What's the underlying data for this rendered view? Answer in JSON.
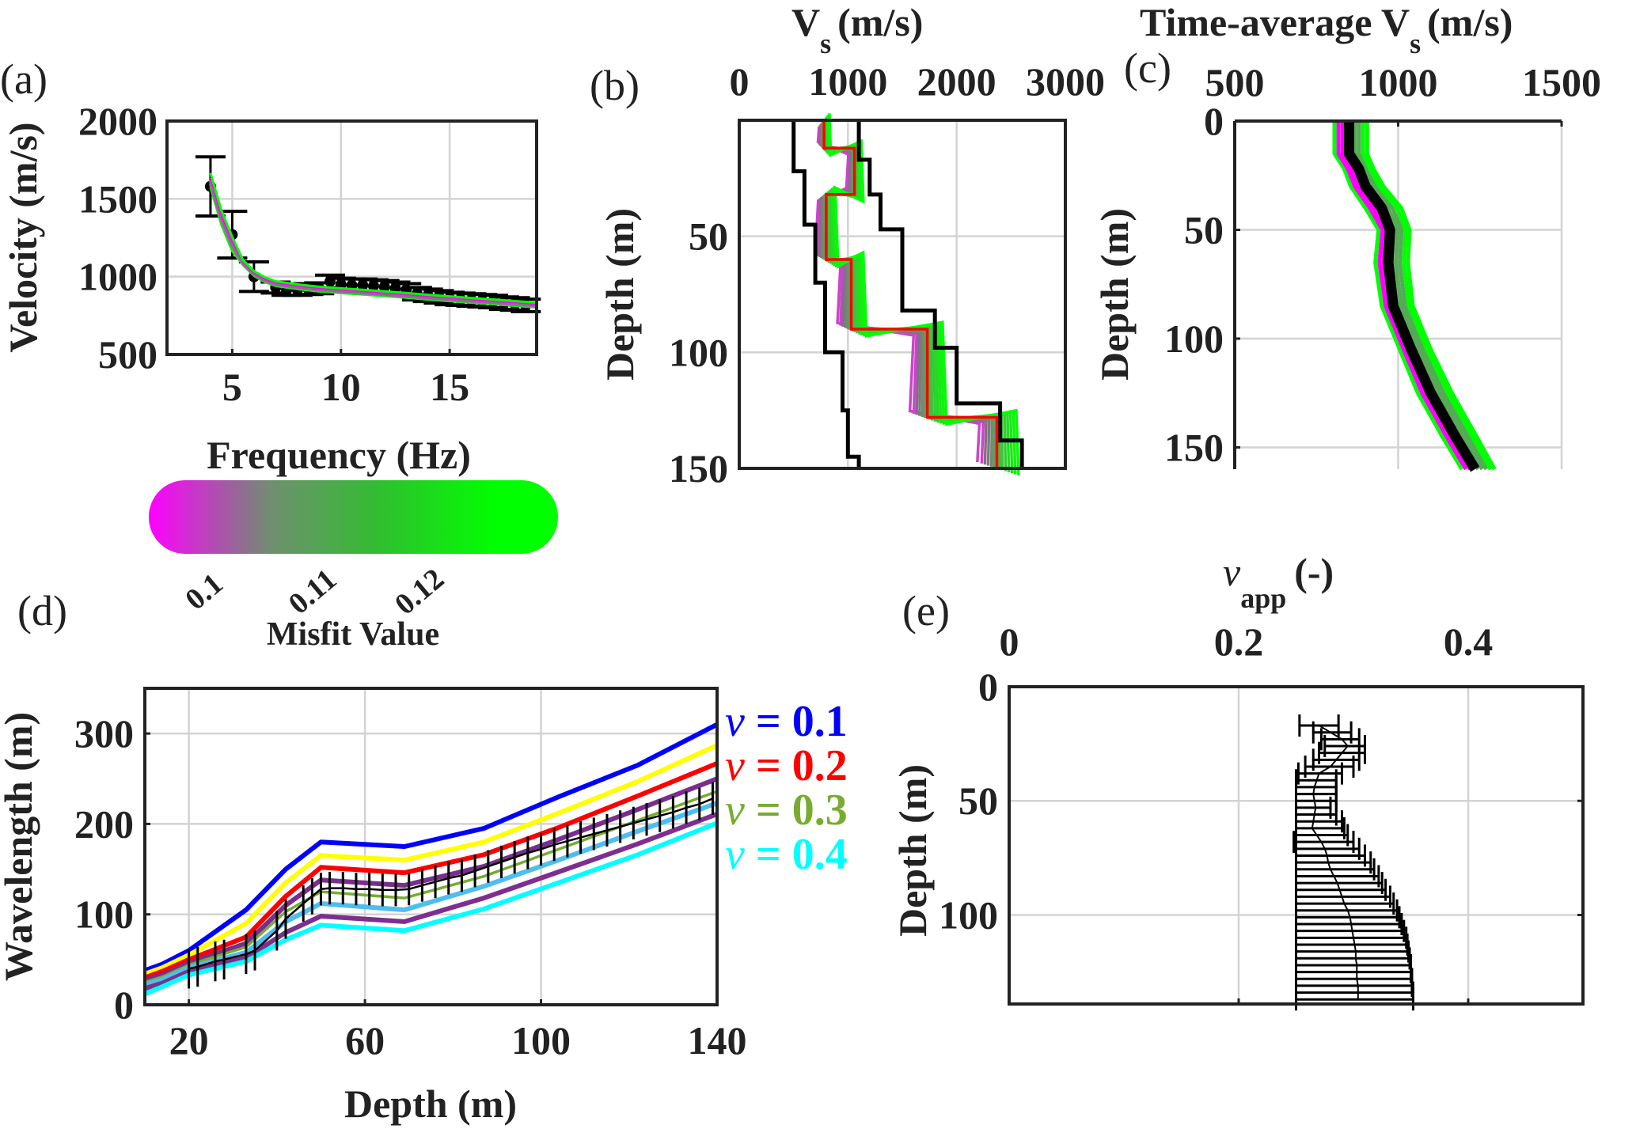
{
  "chart_data": [
    {
      "id": "a",
      "panel_label": "(a)",
      "type": "line",
      "xlabel": "Frequency (Hz)",
      "ylabel": "Velocity (m/s)",
      "xlim": [
        2,
        19
      ],
      "ylim": [
        500,
        2000
      ],
      "xticks": [
        5,
        10,
        15
      ],
      "yticks": [
        500,
        1000,
        1500,
        2000
      ],
      "grid": true,
      "observed": {
        "name": "Experimental dispersion data",
        "x": [
          4,
          5,
          6,
          7,
          7.5,
          8,
          8.5,
          9,
          9.5,
          10,
          10.5,
          11,
          11.5,
          12,
          12.5,
          13,
          13.5,
          14,
          14.5,
          15,
          15.5,
          16,
          16.5,
          17,
          17.5,
          18,
          18.5
        ],
        "y": [
          1580,
          1270,
          1000,
          930,
          915,
          915,
          920,
          925,
          970,
          950,
          945,
          945,
          940,
          935,
          925,
          915,
          890,
          880,
          870,
          860,
          855,
          850,
          845,
          840,
          830,
          825,
          815
        ],
        "err": [
          190,
          150,
          95,
          35,
          35,
          35,
          35,
          35,
          40,
          40,
          40,
          40,
          40,
          40,
          40,
          40,
          40,
          40,
          40,
          40,
          40,
          40,
          40,
          40,
          40,
          40,
          40
        ]
      },
      "fit_band": {
        "name": "Theoretical dispersion curves (colored by misfit)",
        "x": [
          4,
          4.5,
          5,
          5.5,
          6,
          6.5,
          7,
          8,
          9,
          10,
          11,
          12,
          13,
          14,
          15,
          16,
          17,
          18,
          19
        ],
        "y": [
          1620,
          1380,
          1210,
          1090,
          1020,
          980,
          955,
          935,
          920,
          910,
          900,
          890,
          880,
          868,
          858,
          848,
          838,
          828,
          818
        ]
      }
    },
    {
      "id": "b",
      "panel_label": "(b)",
      "type": "line",
      "xlabel_main": "V",
      "xlabel_sub": "s",
      "xlabel_unit": "(m/s)",
      "ylabel": "Depth (m)",
      "xlim": [
        0,
        3000
      ],
      "ylim": [
        0,
        150
      ],
      "xticks": [
        0,
        1000,
        2000,
        3000
      ],
      "yticks": [
        50,
        100,
        150
      ],
      "grid": true,
      "best_profile": {
        "name": "Best Vs profile",
        "color": "#ff0000",
        "steps": [
          [
            0,
            780
          ],
          [
            12,
            780
          ],
          [
            12,
            1060
          ],
          [
            32,
            1060
          ],
          [
            32,
            800
          ],
          [
            60,
            800
          ],
          [
            60,
            1030
          ],
          [
            90,
            1030
          ],
          [
            90,
            1730
          ],
          [
            128,
            1730
          ],
          [
            128,
            2370
          ],
          [
            150,
            2370
          ]
        ]
      },
      "lower_bound": {
        "name": "Lower search bound",
        "color": "#000000",
        "steps": [
          [
            0,
            500
          ],
          [
            22,
            500
          ],
          [
            22,
            600
          ],
          [
            45,
            600
          ],
          [
            45,
            700
          ],
          [
            70,
            700
          ],
          [
            70,
            790
          ],
          [
            100,
            790
          ],
          [
            100,
            950
          ],
          [
            125,
            950
          ],
          [
            125,
            1000
          ],
          [
            145,
            1000
          ],
          [
            145,
            1100
          ],
          [
            150,
            1100
          ]
        ]
      },
      "upper_bound": {
        "name": "Upper search bound",
        "color": "#000000",
        "steps": [
          [
            0,
            1100
          ],
          [
            17,
            1100
          ],
          [
            17,
            1200
          ],
          [
            32,
            1200
          ],
          [
            32,
            1300
          ],
          [
            47,
            1300
          ],
          [
            47,
            1500
          ],
          [
            82,
            1500
          ],
          [
            82,
            1800
          ],
          [
            98,
            1800
          ],
          [
            98,
            2000
          ],
          [
            122,
            2000
          ],
          [
            122,
            2400
          ],
          [
            138,
            2400
          ],
          [
            138,
            2600
          ],
          [
            150,
            2600
          ]
        ]
      }
    },
    {
      "id": "c",
      "panel_label": "(c)",
      "type": "line",
      "xlabel_main": "Time-average V",
      "xlabel_sub": "s",
      "xlabel_unit": "(m/s)",
      "ylabel": "Depth (m)",
      "xlim": [
        500,
        1500
      ],
      "ylim": [
        0,
        160
      ],
      "xticks": [
        500,
        1000,
        1500
      ],
      "yticks": [
        0,
        50,
        100,
        150
      ],
      "grid": true,
      "best_profile": {
        "name": "Time-averaged Vs (best)",
        "depth": [
          0,
          15,
          22,
          30,
          40,
          50,
          65,
          85,
          105,
          125,
          145,
          160
        ],
        "vs": [
          850,
          850,
          880,
          900,
          950,
          975,
          970,
          985,
          1040,
          1100,
          1175,
          1235
        ]
      },
      "band_min": [
        805,
        805,
        835,
        855,
        900,
        940,
        930,
        950,
        1005,
        1060,
        1135,
        1195
      ],
      "band_max": [
        905,
        905,
        925,
        955,
        1010,
        1035,
        1030,
        1045,
        1100,
        1165,
        1240,
        1295
      ]
    },
    {
      "id": "d",
      "panel_label": "(d)",
      "type": "line",
      "xlabel": "Depth (m)",
      "ylabel": "Wavelength (m)",
      "xlim": [
        10,
        140
      ],
      "ylim": [
        0,
        350
      ],
      "xticks": [
        20,
        60,
        100,
        140
      ],
      "yticks": [
        0,
        100,
        200,
        300
      ],
      "grid": true,
      "x": [
        10,
        14,
        20,
        33,
        42,
        50,
        69,
        87,
        104,
        122,
        140
      ],
      "series": [
        {
          "name": "nu = 0.1",
          "color": "#0000ff",
          "values": [
            38,
            45,
            60,
            105,
            150,
            180,
            175,
            195,
            230,
            265,
            310
          ],
          "label": true
        },
        {
          "name": "nu = 0.15",
          "color": "#ffff00",
          "values": [
            34,
            41,
            55,
            90,
            135,
            165,
            160,
            180,
            212,
            247,
            287
          ],
          "label": false
        },
        {
          "name": "nu = 0.2",
          "color": "#ff0000",
          "values": [
            30,
            37,
            50,
            75,
            120,
            152,
            146,
            166,
            196,
            231,
            267
          ],
          "label": true
        },
        {
          "name": "nu = 0.25",
          "color": "#7b2d8e",
          "values": [
            27,
            33,
            46,
            68,
            110,
            138,
            132,
            153,
            183,
            216,
            250
          ],
          "label": false
        },
        {
          "name": "nu = 0.3",
          "color": "#77ac30",
          "values": [
            25,
            31,
            44,
            64,
            103,
            125,
            118,
            142,
            172,
            204,
            236
          ],
          "label": true
        },
        {
          "name": "nu = 0.35",
          "color": "#4dbeee",
          "values": [
            22,
            28,
            41,
            58,
            92,
            112,
            105,
            131,
            160,
            192,
            223
          ],
          "label": false
        },
        {
          "name": "nu = 0.375",
          "color": "#7e2f8e",
          "values": [
            18,
            24,
            37,
            52,
            80,
            98,
            92,
            118,
            147,
            178,
            211
          ],
          "label": false
        },
        {
          "name": "nu = 0.4",
          "color": "#00ffff",
          "values": [
            12,
            20,
            33,
            48,
            72,
            88,
            82,
            106,
            135,
            166,
            201
          ],
          "label": true
        }
      ],
      "legend": [
        {
          "symbol": "ν",
          "eq": " = ",
          "value": "0.1",
          "color": "#0000ff"
        },
        {
          "symbol": "ν",
          "eq": " = ",
          "value": "0.2",
          "color": "#ff0000"
        },
        {
          "symbol": "ν",
          "eq": " = ",
          "value": "0.3",
          "color": "#77ac30"
        },
        {
          "symbol": "ν",
          "eq": " = ",
          "value": "0.4",
          "color": "#00ffff"
        }
      ],
      "legend_placement": "right-outside",
      "measured": {
        "name": "Measured wavelength vs depth (with error bars)",
        "x": [
          20,
          22,
          26,
          28,
          33,
          35,
          40,
          42,
          46,
          48,
          50,
          52,
          55,
          58,
          61,
          64,
          67,
          70,
          73,
          76,
          79,
          82,
          85,
          88,
          91,
          94,
          97,
          100,
          103,
          106,
          109,
          112,
          115,
          118,
          121,
          124,
          127,
          130,
          133,
          136,
          139
        ],
        "y": [
          40,
          42,
          48,
          50,
          56,
          60,
          82,
          95,
          112,
          120,
          128,
          129,
          129,
          128,
          128,
          127,
          127,
          128,
          132,
          136,
          140,
          143,
          148,
          153,
          158,
          163,
          168,
          172,
          177,
          181,
          185,
          189,
          193,
          197,
          201,
          205,
          209,
          213,
          218,
          222,
          228
        ],
        "err": [
          22,
          22,
          22,
          22,
          22,
          22,
          22,
          22,
          20,
          20,
          18,
          18,
          18,
          18,
          18,
          18,
          18,
          18,
          18,
          18,
          18,
          18,
          18,
          18,
          18,
          18,
          18,
          18,
          18,
          18,
          18,
          18,
          18,
          18,
          18,
          18,
          18,
          18,
          18,
          18,
          18
        ]
      }
    },
    {
      "id": "e",
      "panel_label": "(e)",
      "type": "scatter",
      "xlabel_main": "ν",
      "xlabel_sub": "app",
      "xlabel_unit": "(-)",
      "ylabel": "Depth (m)",
      "xlim": [
        0,
        0.5
      ],
      "ylim": [
        0,
        139
      ],
      "xticks": [
        0,
        0.2,
        0.4
      ],
      "yticks": [
        0,
        50,
        100
      ],
      "grid": true,
      "depth": [
        17,
        20,
        23,
        26,
        29,
        32,
        35,
        38,
        41,
        44,
        47,
        50,
        53,
        56,
        59,
        62,
        65,
        68,
        71,
        74,
        77,
        80,
        83,
        86,
        89,
        92,
        95,
        98,
        101,
        104,
        107,
        110,
        113,
        116,
        119,
        122,
        125,
        128,
        131,
        134,
        137
      ],
      "nu_mean": [
        0.27,
        0.28,
        0.29,
        0.295,
        0.29,
        0.285,
        0.28,
        0.27,
        0.268,
        0.266,
        0.265,
        0.266,
        0.267,
        0.266,
        0.265,
        0.264,
        0.268,
        0.272,
        0.275,
        0.277,
        0.278,
        0.28,
        0.283,
        0.286,
        0.288,
        0.29,
        0.292,
        0.295,
        0.297,
        0.298,
        0.299,
        0.3,
        0.301,
        0.302,
        0.302,
        0.303,
        0.303,
        0.303,
        0.304,
        0.304,
        0.304
      ],
      "nu_low": [
        0.253,
        0.265,
        0.272,
        0.275,
        0.27,
        0.265,
        0.258,
        0.252,
        0.25,
        0.25,
        0.25,
        0.25,
        0.25,
        0.25,
        0.25,
        0.25,
        0.25,
        0.248,
        0.25,
        0.25,
        0.25,
        0.25,
        0.25,
        0.25,
        0.25,
        0.25,
        0.25,
        0.25,
        0.25,
        0.25,
        0.25,
        0.25,
        0.25,
        0.25,
        0.25,
        0.25,
        0.25,
        0.25,
        0.25,
        0.25,
        0.25
      ],
      "nu_high": [
        0.287,
        0.298,
        0.305,
        0.31,
        0.31,
        0.305,
        0.3,
        0.29,
        0.285,
        0.285,
        0.285,
        0.285,
        0.28,
        0.285,
        0.29,
        0.292,
        0.295,
        0.3,
        0.305,
        0.31,
        0.315,
        0.318,
        0.322,
        0.325,
        0.328,
        0.332,
        0.335,
        0.338,
        0.34,
        0.342,
        0.344,
        0.346,
        0.347,
        0.348,
        0.349,
        0.35,
        0.35,
        0.351,
        0.351,
        0.352,
        0.352
      ]
    }
  ],
  "colorbar": {
    "label": "Misfit Value",
    "ticks": [
      "0.1",
      "0.11",
      "0.12"
    ],
    "tick_values": [
      0.1,
      0.11,
      0.12
    ],
    "color_low": "#ff00ff",
    "color_mid": "#55aa55",
    "color_high": "#00ff00"
  }
}
